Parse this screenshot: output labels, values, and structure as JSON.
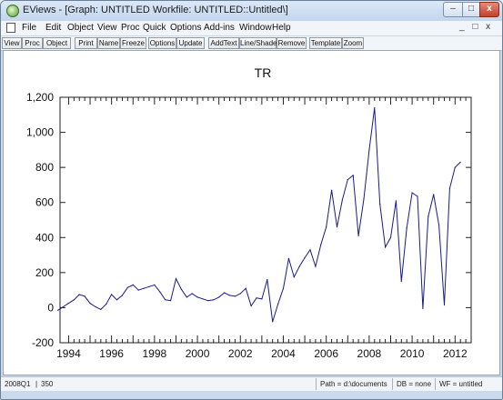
{
  "window": {
    "title": "EViews - [Graph: UNTITLED   Workfile: UNTITLED::Untitled\\]",
    "min_glyph": "–",
    "max_glyph": "□",
    "close_glyph": "x"
  },
  "menu": {
    "items": [
      "File",
      "Edit",
      "Object",
      "View",
      "Proc",
      "Quick",
      "Options",
      "Add-ins",
      "Window",
      "Help"
    ],
    "mdi_controls": "_ □ x"
  },
  "toolbar": {
    "buttons": [
      "View",
      "Proc",
      "Object",
      "Print",
      "Name",
      "Freeze",
      "Options",
      "Update",
      "AddText",
      "Line/Shade",
      "Remove",
      "Template",
      "Zoom"
    ]
  },
  "chart_data": {
    "type": "line",
    "title": "TR",
    "ylim": [
      -200,
      1200
    ],
    "xlim": [
      1993.6,
      2012.75
    ],
    "yticks": [
      -200,
      0,
      200,
      400,
      600,
      800,
      1000,
      1200
    ],
    "ytick_labels": [
      "-200",
      "0",
      "200",
      "400",
      "600",
      "800",
      "1,000",
      "1,200"
    ],
    "xticks": [
      1994,
      1996,
      1998,
      2000,
      2002,
      2004,
      2006,
      2008,
      2010,
      2012
    ],
    "xtick_labels": [
      "1994",
      "1996",
      "1998",
      "2000",
      "2002",
      "2004",
      "2006",
      "2008",
      "2010",
      "2012"
    ],
    "grid": false,
    "line_color": "#1a1a8c",
    "series": [
      {
        "x": [
          "1993Q3",
          "1993Q4",
          "1994Q1",
          "1994Q2",
          "1994Q3",
          "1994Q4",
          "1995Q1",
          "1995Q2",
          "1995Q3",
          "1995Q4",
          "1996Q1",
          "1996Q2",
          "1996Q3",
          "1996Q4",
          "1997Q1",
          "1997Q2",
          "1997Q3",
          "1997Q4",
          "1998Q1",
          "1998Q2",
          "1998Q3",
          "1998Q4",
          "1999Q1",
          "1999Q2",
          "1999Q3",
          "1999Q4",
          "2000Q1",
          "2000Q2",
          "2000Q3",
          "2000Q4",
          "2001Q1",
          "2001Q2",
          "2001Q3",
          "2001Q4",
          "2002Q1",
          "2002Q2",
          "2002Q3",
          "2002Q4",
          "2003Q1",
          "2003Q2",
          "2003Q3",
          "2003Q4",
          "2004Q1",
          "2004Q2",
          "2004Q3",
          "2004Q4",
          "2005Q1",
          "2005Q2",
          "2005Q3",
          "2005Q4",
          "2006Q1",
          "2006Q2",
          "2006Q3",
          "2006Q4",
          "2007Q1",
          "2007Q2",
          "2007Q3",
          "2007Q4",
          "2008Q1",
          "2008Q2",
          "2008Q3",
          "2008Q4",
          "2009Q1",
          "2009Q2",
          "2009Q3",
          "2009Q4",
          "2010Q1",
          "2010Q2",
          "2010Q3",
          "2010Q4",
          "2011Q1",
          "2011Q2",
          "2011Q3",
          "2011Q4",
          "2012Q1",
          "2012Q2"
        ],
        "values": [
          -15,
          5,
          25,
          45,
          75,
          65,
          25,
          5,
          -10,
          20,
          75,
          45,
          70,
          115,
          130,
          100,
          110,
          120,
          130,
          90,
          45,
          40,
          165,
          105,
          60,
          80,
          60,
          50,
          40,
          45,
          60,
          85,
          70,
          65,
          80,
          110,
          10,
          55,
          50,
          160,
          -80,
          20,
          110,
          280,
          175,
          235,
          285,
          330,
          235,
          360,
          460,
          670,
          460,
          615,
          730,
          755,
          410,
          620,
          900,
          1140,
          590,
          345,
          400,
          610,
          150,
          455,
          655,
          635,
          -5,
          520,
          645,
          470,
          15,
          680,
          800,
          830
        ]
      }
    ]
  },
  "statusbar": {
    "date_obs": "2008Q1",
    "separator": "|",
    "obs_no": "350",
    "path": "Path = d:\\documents",
    "db": "DB = none",
    "wf": "WF = untitled"
  }
}
